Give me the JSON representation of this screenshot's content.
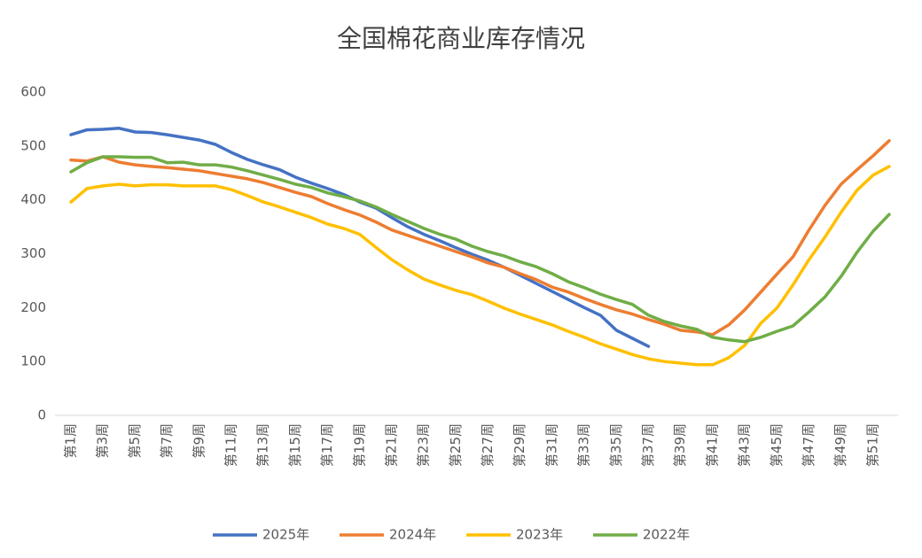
{
  "chart_data": {
    "type": "line",
    "title": "全国棉花商业库存情况",
    "categories": [
      "第1周",
      null,
      "第3周",
      null,
      "第5周",
      null,
      "第7周",
      null,
      "第9周",
      null,
      "第11周",
      null,
      "第13周",
      null,
      "第15周",
      null,
      "第17周",
      null,
      "第19周",
      null,
      "第21周",
      null,
      "第23周",
      null,
      "第25周",
      null,
      "第27周",
      null,
      "第29周",
      null,
      "第31周",
      null,
      "第33周",
      null,
      "第35周",
      null,
      "第37周",
      null,
      "第39周",
      null,
      "第41周",
      null,
      "第43周",
      null,
      "第45周",
      null,
      "第47周",
      null,
      "第49周",
      null,
      "第51周",
      null
    ],
    "series": [
      {
        "name": "2025年",
        "color": "#4472c4",
        "values": [
          521,
          530,
          531,
          533,
          526,
          525,
          521,
          516,
          511,
          503,
          488,
          475,
          465,
          456,
          442,
          431,
          421,
          410,
          396,
          385,
          367,
          350,
          336,
          324,
          311,
          299,
          288,
          275,
          260,
          245,
          230,
          215,
          200,
          186,
          158,
          143,
          128,
          null,
          null,
          null,
          null,
          null,
          null,
          null,
          null,
          null,
          null,
          null,
          null,
          null,
          null,
          null
        ]
      },
      {
        "name": "2024年",
        "color": "#ed7d31",
        "values": [
          474,
          472,
          480,
          470,
          465,
          462,
          460,
          457,
          454,
          449,
          444,
          439,
          432,
          423,
          414,
          406,
          393,
          382,
          372,
          359,
          344,
          334,
          324,
          314,
          304,
          294,
          283,
          275,
          263,
          252,
          238,
          229,
          217,
          206,
          196,
          188,
          178,
          169,
          158,
          155,
          150,
          168,
          196,
          229,
          262,
          294,
          344,
          390,
          429,
          456,
          482,
          510
        ]
      },
      {
        "name": "2023年",
        "color": "#ffc000",
        "values": [
          396,
          421,
          426,
          429,
          426,
          428,
          428,
          426,
          426,
          426,
          419,
          408,
          396,
          387,
          377,
          367,
          355,
          347,
          336,
          312,
          289,
          270,
          253,
          242,
          232,
          224,
          212,
          199,
          188,
          178,
          168,
          156,
          145,
          133,
          123,
          113,
          105,
          100,
          97,
          94,
          94,
          107,
          130,
          171,
          199,
          242,
          289,
          331,
          377,
          418,
          446,
          462
        ]
      },
      {
        "name": "2022年",
        "color": "#70ad47",
        "values": [
          452,
          469,
          480,
          480,
          479,
          479,
          469,
          470,
          465,
          465,
          461,
          454,
          446,
          438,
          429,
          423,
          413,
          406,
          398,
          387,
          373,
          360,
          347,
          336,
          327,
          314,
          304,
          296,
          285,
          276,
          263,
          248,
          237,
          225,
          215,
          206,
          186,
          174,
          166,
          160,
          145,
          140,
          137,
          145,
          156,
          166,
          192,
          220,
          258,
          303,
          342,
          373
        ]
      }
    ],
    "ylim": [
      0,
      600
    ],
    "yticks": [
      0,
      100,
      200,
      300,
      400,
      500,
      600
    ],
    "legend": "bottom"
  }
}
